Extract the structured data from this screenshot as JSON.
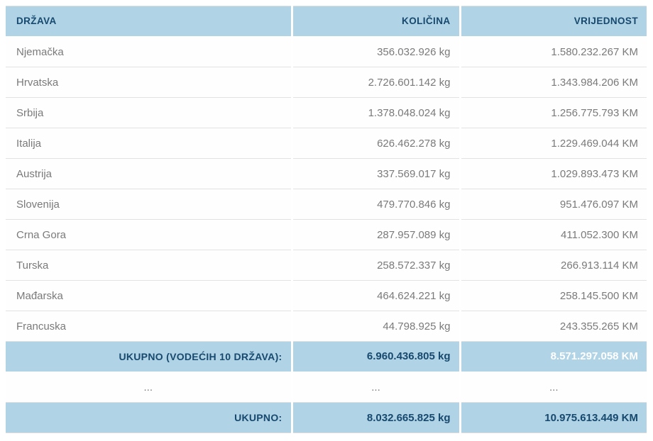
{
  "colors": {
    "header_bg": "#b0d3e6",
    "header_text": "#17496e",
    "body_text": "#7a7a7a",
    "row_border": "#e2e2e2",
    "subtotal_value_highlight": "#ffffff"
  },
  "table": {
    "columns": [
      {
        "key": "drzava",
        "label": "DRŽAVA"
      },
      {
        "key": "kolicina",
        "label": "KOLIČINA"
      },
      {
        "key": "vrijednost",
        "label": "VRIJEDNOST"
      }
    ],
    "rows": [
      {
        "drzava": "Njemačka",
        "kolicina": "356.032.926 kg",
        "vrijednost": "1.580.232.267 KM"
      },
      {
        "drzava": "Hrvatska",
        "kolicina": "2.726.601.142 kg",
        "vrijednost": "1.343.984.206 KM"
      },
      {
        "drzava": "Srbija",
        "kolicina": "1.378.048.024 kg",
        "vrijednost": "1.256.775.793 KM"
      },
      {
        "drzava": "Italija",
        "kolicina": "626.462.278 kg",
        "vrijednost": "1.229.469.044 KM"
      },
      {
        "drzava": "Austrija",
        "kolicina": "337.569.017 kg",
        "vrijednost": "1.029.893.473 KM"
      },
      {
        "drzava": "Slovenija",
        "kolicina": "479.770.846 kg",
        "vrijednost": "951.476.097 KM"
      },
      {
        "drzava": "Crna Gora",
        "kolicina": "287.957.089 kg",
        "vrijednost": "411.052.300 KM"
      },
      {
        "drzava": "Turska",
        "kolicina": "258.572.337 kg",
        "vrijednost": "266.913.114 KM"
      },
      {
        "drzava": "Mađarska",
        "kolicina": "464.624.221 kg",
        "vrijednost": "258.145.500 KM"
      },
      {
        "drzava": "Francuska",
        "kolicina": "44.798.925 kg",
        "vrijednost": "243.355.265 KM"
      }
    ],
    "subtotal_row": {
      "label": "UKUPNO (VODEĆIH 10 DRŽAVA):",
      "kolicina": "6.960.436.805 kg",
      "vrijednost": "8.571.297.058 KM"
    },
    "dots_row": {
      "drzava": "...",
      "kolicina": "...",
      "vrijednost": "..."
    },
    "total_row": {
      "label": "UKUPNO:",
      "kolicina": "8.032.665.825 kg",
      "vrijednost": "10.975.613.449 KM"
    }
  }
}
